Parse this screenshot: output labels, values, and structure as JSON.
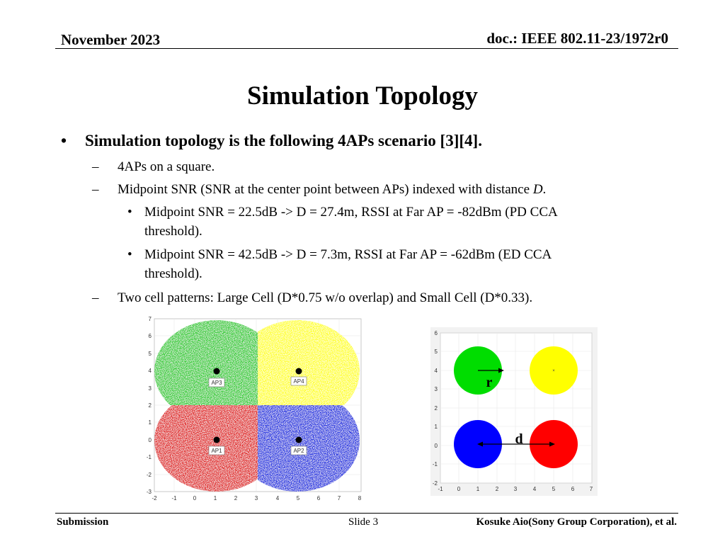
{
  "header": {
    "date": "November 2023",
    "doc_id": "doc.: IEEE 802.11-23/1972r0"
  },
  "slide": {
    "title": "Simulation Topology",
    "bullet_main": "Simulation topology is the following 4APs scenario [3][4].",
    "bullets": [
      {
        "marker": "–",
        "text": "4APs on a square."
      },
      {
        "marker": "–",
        "text": "Midpoint SNR (SNR at the center point between APs) indexed with distance ",
        "italic": "D",
        "after": "."
      },
      {
        "marker": "•",
        "text": "Midpoint SNR = 22.5dB -> D = 27.4m, RSSI at Far AP = -82dBm (PD CCA",
        "cont": "threshold)."
      },
      {
        "marker": "•",
        "text": "Midpoint SNR = 42.5dB -> D = 7.3m, RSSI at Far AP = -62dBm (ED CCA",
        "cont": "threshold)."
      },
      {
        "marker": "–",
        "text": "Two cell patterns: Large Cell (D*0.75 w/o overlap) and Small Cell (D*0.33)."
      }
    ]
  },
  "figure_large": {
    "x_ticks": [
      "-2",
      "-1",
      "0",
      "1",
      "2",
      "3",
      "4",
      "5",
      "6",
      "7",
      "8"
    ],
    "y_ticks": [
      "7",
      "6",
      "5",
      "4",
      "3",
      "2",
      "1",
      "0",
      "-1",
      "-2",
      "-3"
    ],
    "ap_labels": [
      "AP3",
      "AP4",
      "AP1",
      "AP2"
    ],
    "colors": {
      "ap3": "#2ecc2e",
      "ap4": "#ffff1a",
      "ap1": "#e01a1a",
      "ap2": "#1a2ee0"
    }
  },
  "figure_small": {
    "x_ticks": [
      "-1",
      "0",
      "1",
      "2",
      "3",
      "4",
      "5",
      "6",
      "7"
    ],
    "y_ticks": [
      "6",
      "5",
      "4",
      "3",
      "2",
      "1",
      "0",
      "-1",
      "-2"
    ],
    "label_r": "r",
    "label_d": "d",
    "colors": {
      "green": "#00dd00",
      "yellow": "#ffff00",
      "blue": "#0000ff",
      "red": "#ff0000"
    }
  },
  "footer": {
    "left": "Submission",
    "center": "Slide 3",
    "right": "Kosuke Aio(Sony Group Corporation), et al."
  }
}
